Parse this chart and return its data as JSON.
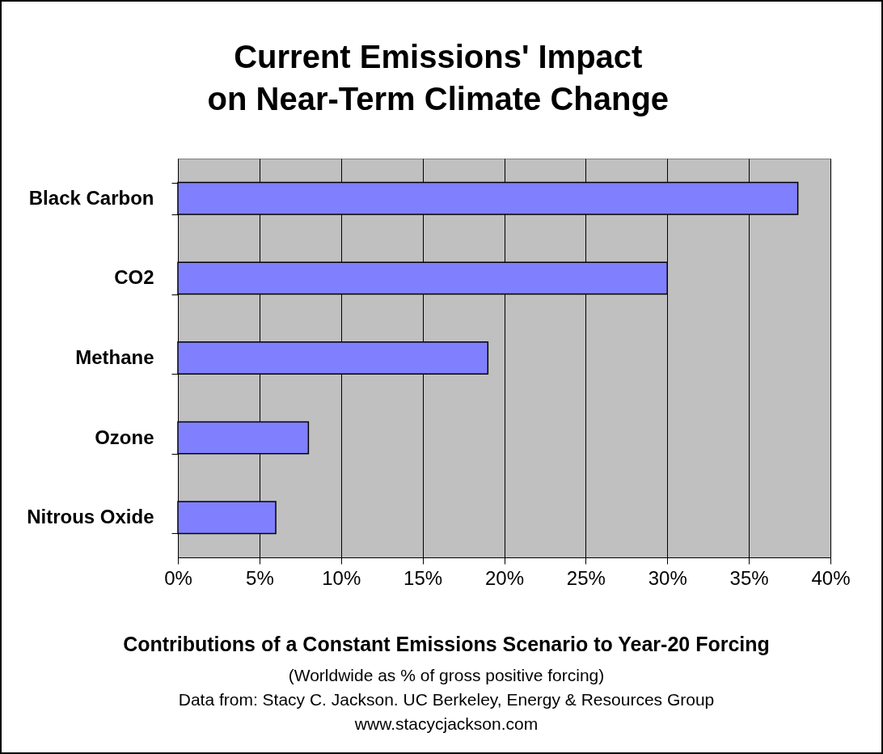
{
  "chart_data": {
    "type": "bar",
    "orientation": "horizontal",
    "title": "Current Emissions' Impact on Near-Term Climate Change",
    "categories": [
      "Black Carbon",
      "CO2",
      "Methane",
      "Ozone",
      "Nitrous Oxide"
    ],
    "values": [
      38,
      30,
      19,
      8,
      6
    ],
    "color": "#8080ff",
    "xlim": [
      0,
      40
    ],
    "xticks": [
      {
        "value": 0,
        "label": "0%"
      },
      {
        "value": 5,
        "label": "5%"
      },
      {
        "value": 10,
        "label": "10%"
      },
      {
        "value": 15,
        "label": "15%"
      },
      {
        "value": 20,
        "label": "20%"
      },
      {
        "value": 25,
        "label": "25%"
      },
      {
        "value": 30,
        "label": "30%"
      },
      {
        "value": 35,
        "label": "35%"
      },
      {
        "value": 40,
        "label": "40%"
      }
    ],
    "grid": "x",
    "xlabel": "Contributions of a Constant Emissions Scenario to Year-20 Forcing",
    "annotations": [
      "(Worldwide as % of gross positive forcing)",
      "Data from: Stacy C. Jackson. UC Berkeley, Energy & Resources Group",
      "www.stacycjackson.com"
    ]
  }
}
